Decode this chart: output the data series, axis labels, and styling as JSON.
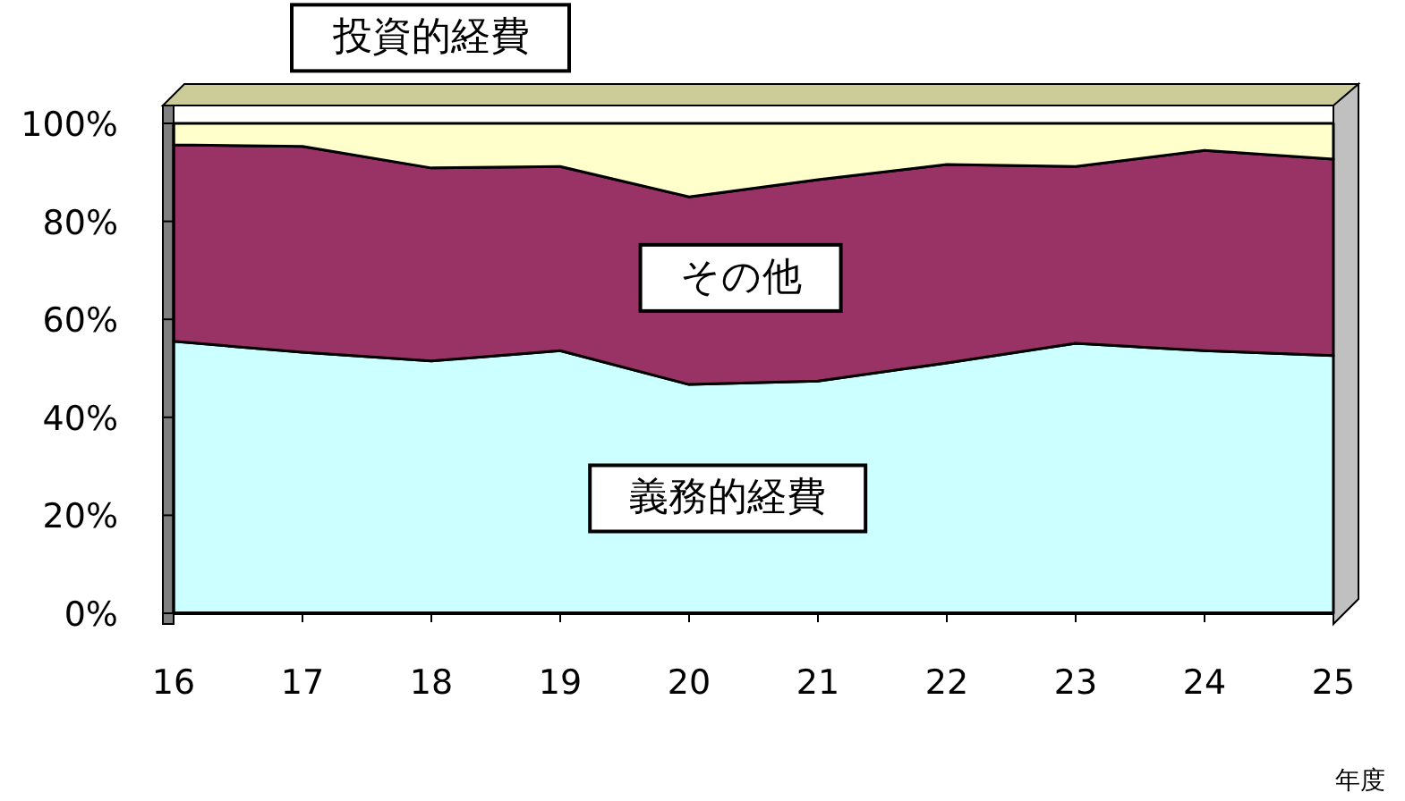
{
  "chart_data": {
    "type": "area",
    "stacked": true,
    "xlabel": "年度",
    "x": [
      16,
      17,
      18,
      19,
      20,
      21,
      22,
      23,
      24,
      25
    ],
    "xlim": [
      16,
      25
    ],
    "xticks": [
      16,
      17,
      18,
      19,
      20,
      21,
      22,
      23,
      24,
      25
    ],
    "ylim": [
      0,
      100
    ],
    "yticks": [
      {
        "value": 0,
        "label": "0%"
      },
      {
        "value": 20,
        "label": "20%"
      },
      {
        "value": 40,
        "label": "40%"
      },
      {
        "value": 60,
        "label": "60%"
      },
      {
        "value": 80,
        "label": "80%"
      },
      {
        "value": 100,
        "label": "100%"
      }
    ],
    "legend": false,
    "grid": false,
    "series": [
      {
        "name": "義務的経費",
        "color": "#ccffff",
        "values": [
          55.5,
          53.3,
          51.5,
          53.6,
          46.7,
          47.4,
          51.1,
          55.1,
          53.6,
          52.6
        ]
      },
      {
        "name": "その他",
        "color": "#993366",
        "values": [
          40.1,
          42.0,
          39.4,
          37.6,
          38.3,
          41.1,
          40.5,
          36.1,
          40.9,
          40.1
        ]
      },
      {
        "name": "投資的経費",
        "color": "#ffffcc",
        "values": [
          4.4,
          4.7,
          9.1,
          8.8,
          15.0,
          11.5,
          8.4,
          8.8,
          5.5,
          7.3
        ]
      }
    ]
  }
}
